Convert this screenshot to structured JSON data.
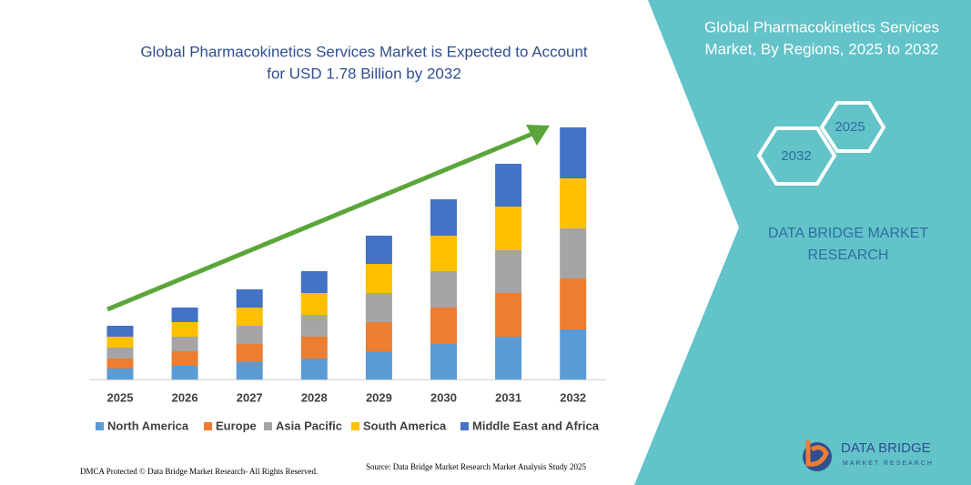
{
  "chart_data": {
    "type": "bar",
    "stacked": true,
    "title": [
      "Global Pharmacokinetics Services Market is Expected to Account",
      "for USD 1.78 Billion by 2032"
    ],
    "categories": [
      "2025",
      "2026",
      "2027",
      "2028",
      "2029",
      "2030",
      "2031",
      "2032"
    ],
    "series": [
      {
        "name": "North America",
        "color": "#5b9bd5",
        "values": [
          12,
          15,
          19,
          23,
          31,
          39,
          47,
          55
        ]
      },
      {
        "name": "Europe",
        "color": "#ed7d31",
        "values": [
          11,
          16,
          20,
          24,
          32,
          40,
          48,
          56
        ]
      },
      {
        "name": "Asia Pacific",
        "color": "#a5a5a5",
        "values": [
          12,
          16,
          20,
          24,
          32,
          40,
          47,
          55
        ]
      },
      {
        "name": "South America",
        "color": "#ffc000",
        "values": [
          12,
          16,
          20,
          24,
          32,
          39,
          48,
          55
        ]
      },
      {
        "name": "Middle East and Africa",
        "color": "#4472c4",
        "values": [
          12,
          16,
          20,
          24,
          31,
          40,
          47,
          56
        ]
      }
    ],
    "ylim": [
      0,
      277
    ]
  },
  "panel": {
    "title": [
      "Global Pharmacokinetics Services",
      "Market, By Regions, 2025 to 2032"
    ],
    "hex_labels": [
      "2025",
      "2032"
    ],
    "brand": [
      "DATA BRIDGE MARKET",
      "RESEARCH"
    ]
  },
  "logo": {
    "name": "DATA BRIDGE",
    "tagline": "MARKET RESEARCH"
  },
  "footer": {
    "dmca": "DMCA Protected © Data Bridge Market Research- All Rights Reserved.",
    "source": "Source: Data Bridge Market Research  Market Analysis Study 2025"
  }
}
